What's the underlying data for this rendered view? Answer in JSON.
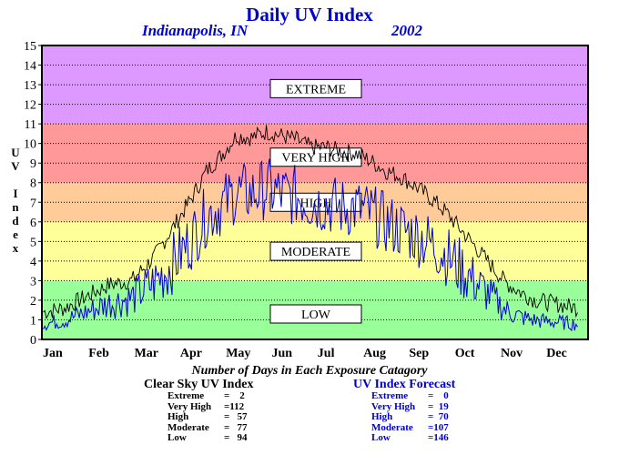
{
  "chart_data": {
    "type": "line",
    "title": "Daily UV Index",
    "subtitle_location": "Indianapolis, IN",
    "subtitle_year": "2002",
    "ylabel": "UV Index",
    "ylim": [
      0,
      15
    ],
    "yticks": [
      "0",
      "1",
      "2",
      "3",
      "4",
      "5",
      "6",
      "7",
      "8",
      "9",
      "10",
      "11",
      "12",
      "13",
      "14",
      "15"
    ],
    "months": [
      "Jan",
      "Feb",
      "Mar",
      "Apr",
      "May",
      "Jun",
      "Jul",
      "Aug",
      "Sep",
      "Oct",
      "Nov",
      "Dec"
    ],
    "grid": true,
    "bands": [
      {
        "label": "LOW",
        "from": 0,
        "to": 3,
        "color": "#99ff99"
      },
      {
        "label": "MODERATE",
        "from": 3,
        "to": 6,
        "color": "#ffff99"
      },
      {
        "label": "HIGH",
        "from": 6,
        "to": 8,
        "color": "#ffcc99"
      },
      {
        "label": "VERY HIGH",
        "from": 8,
        "to": 11,
        "color": "#ff9999"
      },
      {
        "label": "EXTREME",
        "from": 11,
        "to": 15,
        "color": "#dd99ff"
      }
    ],
    "series": [
      {
        "name": "Clear Sky UV Index",
        "color": "#000000",
        "x": [
          1,
          15,
          30,
          45,
          60,
          75,
          90,
          100,
          110,
          120,
          130,
          140,
          150,
          160,
          170,
          180,
          190,
          200,
          210,
          220,
          230,
          240,
          250,
          260,
          270,
          280,
          290,
          300,
          310,
          320,
          330,
          345,
          358
        ],
        "values": [
          1.4,
          1.6,
          2.2,
          2.8,
          3.0,
          4.2,
          6.0,
          7.2,
          8.6,
          9.4,
          10.4,
          10.3,
          10.6,
          10.4,
          10.2,
          9.8,
          9.8,
          9.6,
          9.5,
          9.1,
          8.6,
          8.3,
          7.8,
          7.2,
          6.5,
          5.6,
          4.7,
          3.8,
          2.9,
          2.4,
          2.0,
          1.8,
          1.6
        ]
      },
      {
        "name": "UV Index Forecast",
        "color": "#0000cc",
        "x": [
          1,
          15,
          30,
          45,
          60,
          75,
          90,
          100,
          110,
          120,
          130,
          140,
          150,
          160,
          170,
          180,
          190,
          200,
          210,
          220,
          230,
          240,
          250,
          260,
          270,
          280,
          290,
          300,
          310,
          320,
          330,
          345,
          358
        ],
        "values": [
          0.9,
          1.1,
          1.6,
          2.1,
          2.4,
          3.3,
          4.6,
          5.6,
          6.8,
          7.3,
          8.0,
          7.9,
          8.2,
          7.9,
          7.8,
          7.5,
          7.4,
          7.2,
          7.2,
          6.9,
          6.4,
          6.1,
          5.8,
          5.4,
          4.8,
          4.1,
          3.3,
          2.5,
          1.7,
          1.3,
          1.1,
          1.0,
          0.9
        ]
      }
    ]
  },
  "summary": {
    "heading": "Number of Days in Each Exposure Catagory",
    "clear": {
      "title": "Clear Sky UV Index",
      "rows": [
        {
          "label": "Extreme",
          "value": "=    2"
        },
        {
          "label": "Very High",
          "value": "=112"
        },
        {
          "label": "High",
          "value": "=   57"
        },
        {
          "label": "Moderate",
          "value": "=   77"
        },
        {
          "label": "Low",
          "value": "=   94"
        }
      ]
    },
    "forecast": {
      "title": "UV Index Forecast",
      "rows": [
        {
          "label": "Extreme",
          "value": "=    0"
        },
        {
          "label": "Very High",
          "value": "=  19"
        },
        {
          "label": "High",
          "value": "=  70"
        },
        {
          "label": "Moderate",
          "value": "=107"
        },
        {
          "label": "Low",
          "value": "=146"
        }
      ]
    }
  }
}
